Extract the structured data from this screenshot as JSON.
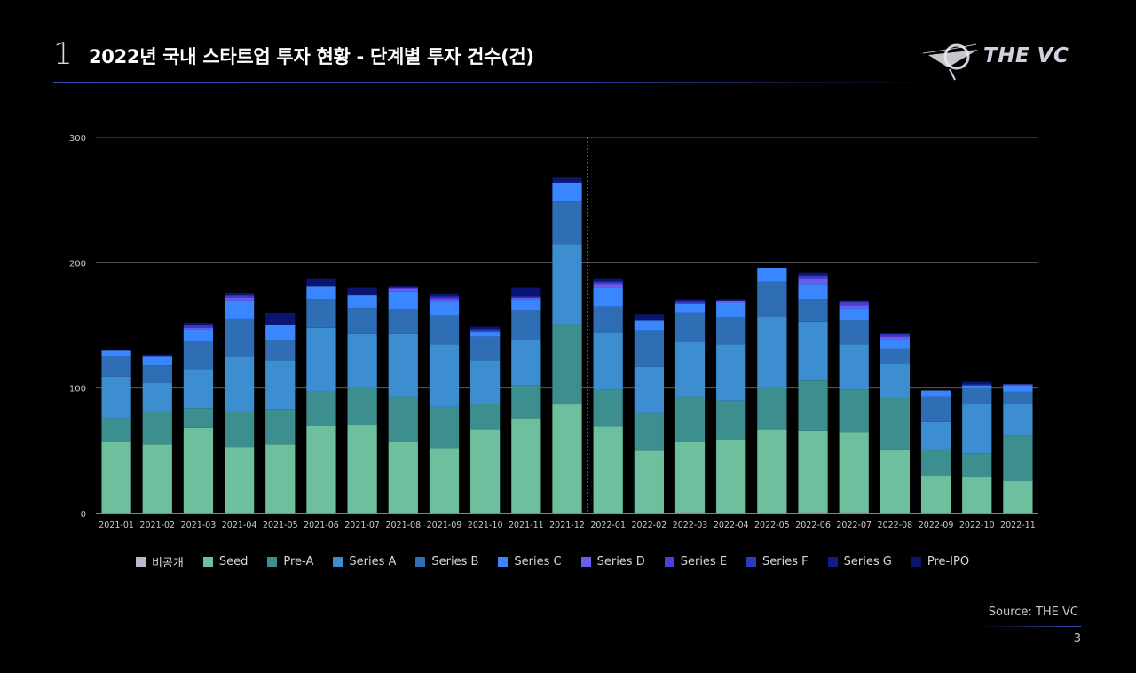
{
  "header": {
    "section_number": "1",
    "title": "2022년 국내 스타트업 투자 현황 - 단계별 투자 건수(건)"
  },
  "logo": {
    "text": "THE VC"
  },
  "footer": {
    "source": "Source: THE VC",
    "page_number": "3"
  },
  "chart_data": {
    "type": "bar",
    "stacked": true,
    "title": "2022년 국내 스타트업 투자 현황 - 단계별 투자 건수(건)",
    "xlabel": "",
    "ylabel": "",
    "ylim": [
      0,
      300
    ],
    "yticks": [
      0,
      100,
      200,
      300
    ],
    "grid": true,
    "legend_position": "bottom",
    "divider_after_category": "2021-12",
    "categories": [
      "2021-01",
      "2021-02",
      "2021-03",
      "2021-04",
      "2021-05",
      "2021-06",
      "2021-07",
      "2021-08",
      "2021-09",
      "2021-10",
      "2021-11",
      "2021-12",
      "2022-01",
      "2022-02",
      "2022-03",
      "2022-04",
      "2022-05",
      "2022-06",
      "2022-07",
      "2022-08",
      "2022-09",
      "2022-10",
      "2022-11"
    ],
    "series": [
      {
        "name": "비공개",
        "color": "#b9b9d6",
        "values": [
          0,
          0,
          0,
          0,
          0,
          0,
          0,
          0,
          0,
          0,
          0,
          0,
          0,
          0,
          1,
          0,
          0,
          1,
          1,
          0,
          0,
          0,
          0
        ]
      },
      {
        "name": "Seed",
        "color": "#6dbf9e",
        "values": [
          57,
          55,
          68,
          53,
          55,
          70,
          71,
          57,
          52,
          67,
          76,
          87,
          69,
          50,
          56,
          59,
          67,
          65,
          64,
          51,
          30,
          29,
          26
        ]
      },
      {
        "name": "Pre-A",
        "color": "#3d8e8f",
        "values": [
          19,
          26,
          16,
          28,
          28,
          27,
          30,
          36,
          33,
          20,
          26,
          64,
          30,
          30,
          36,
          31,
          34,
          40,
          34,
          41,
          21,
          19,
          36
        ]
      },
      {
        "name": "Series A",
        "color": "#3c8ed0",
        "values": [
          33,
          23,
          31,
          44,
          39,
          51,
          42,
          50,
          50,
          35,
          36,
          64,
          45,
          37,
          44,
          45,
          56,
          47,
          36,
          28,
          22,
          39,
          25
        ]
      },
      {
        "name": "Series B",
        "color": "#2f6db5",
        "values": [
          16,
          14,
          22,
          30,
          16,
          23,
          21,
          20,
          23,
          19,
          24,
          34,
          21,
          29,
          23,
          22,
          28,
          18,
          19,
          11,
          20,
          13,
          10
        ]
      },
      {
        "name": "Series C",
        "color": "#3a86ff",
        "values": [
          5,
          7,
          10,
          15,
          12,
          10,
          10,
          14,
          11,
          4,
          9,
          15,
          15,
          8,
          7,
          11,
          11,
          12,
          10,
          8,
          5,
          2,
          5
        ]
      },
      {
        "name": "Series D",
        "color": "#6a5cf0",
        "values": [
          0,
          0,
          1,
          2,
          0,
          0,
          0,
          2,
          2,
          0,
          1,
          0,
          3,
          0,
          0,
          2,
          0,
          4,
          2,
          2,
          0,
          0,
          1
        ]
      },
      {
        "name": "Series E",
        "color": "#4a3fd8",
        "values": [
          0,
          0,
          1,
          1,
          0,
          0,
          0,
          1,
          1,
          1,
          0,
          0,
          1,
          0,
          1,
          0,
          0,
          2,
          2,
          1,
          0,
          0,
          0
        ]
      },
      {
        "name": "Series F",
        "color": "#2a3cc0",
        "values": [
          0,
          1,
          1,
          1,
          0,
          0,
          0,
          0,
          1,
          1,
          1,
          0,
          1,
          0,
          1,
          0,
          0,
          1,
          1,
          1,
          0,
          1,
          0
        ]
      },
      {
        "name": "Series G",
        "color": "#0e1f8a",
        "values": [
          0,
          0,
          0,
          0,
          1,
          0,
          0,
          0,
          0,
          0,
          0,
          1,
          0,
          0,
          0,
          0,
          0,
          0,
          0,
          0,
          0,
          0,
          0
        ]
      },
      {
        "name": "Pre-IPO",
        "color": "#0b1470",
        "values": [
          0,
          1,
          2,
          2,
          9,
          6,
          6,
          1,
          2,
          2,
          7,
          3,
          2,
          5,
          2,
          1,
          0,
          2,
          1,
          1,
          0,
          2,
          0
        ]
      }
    ]
  }
}
